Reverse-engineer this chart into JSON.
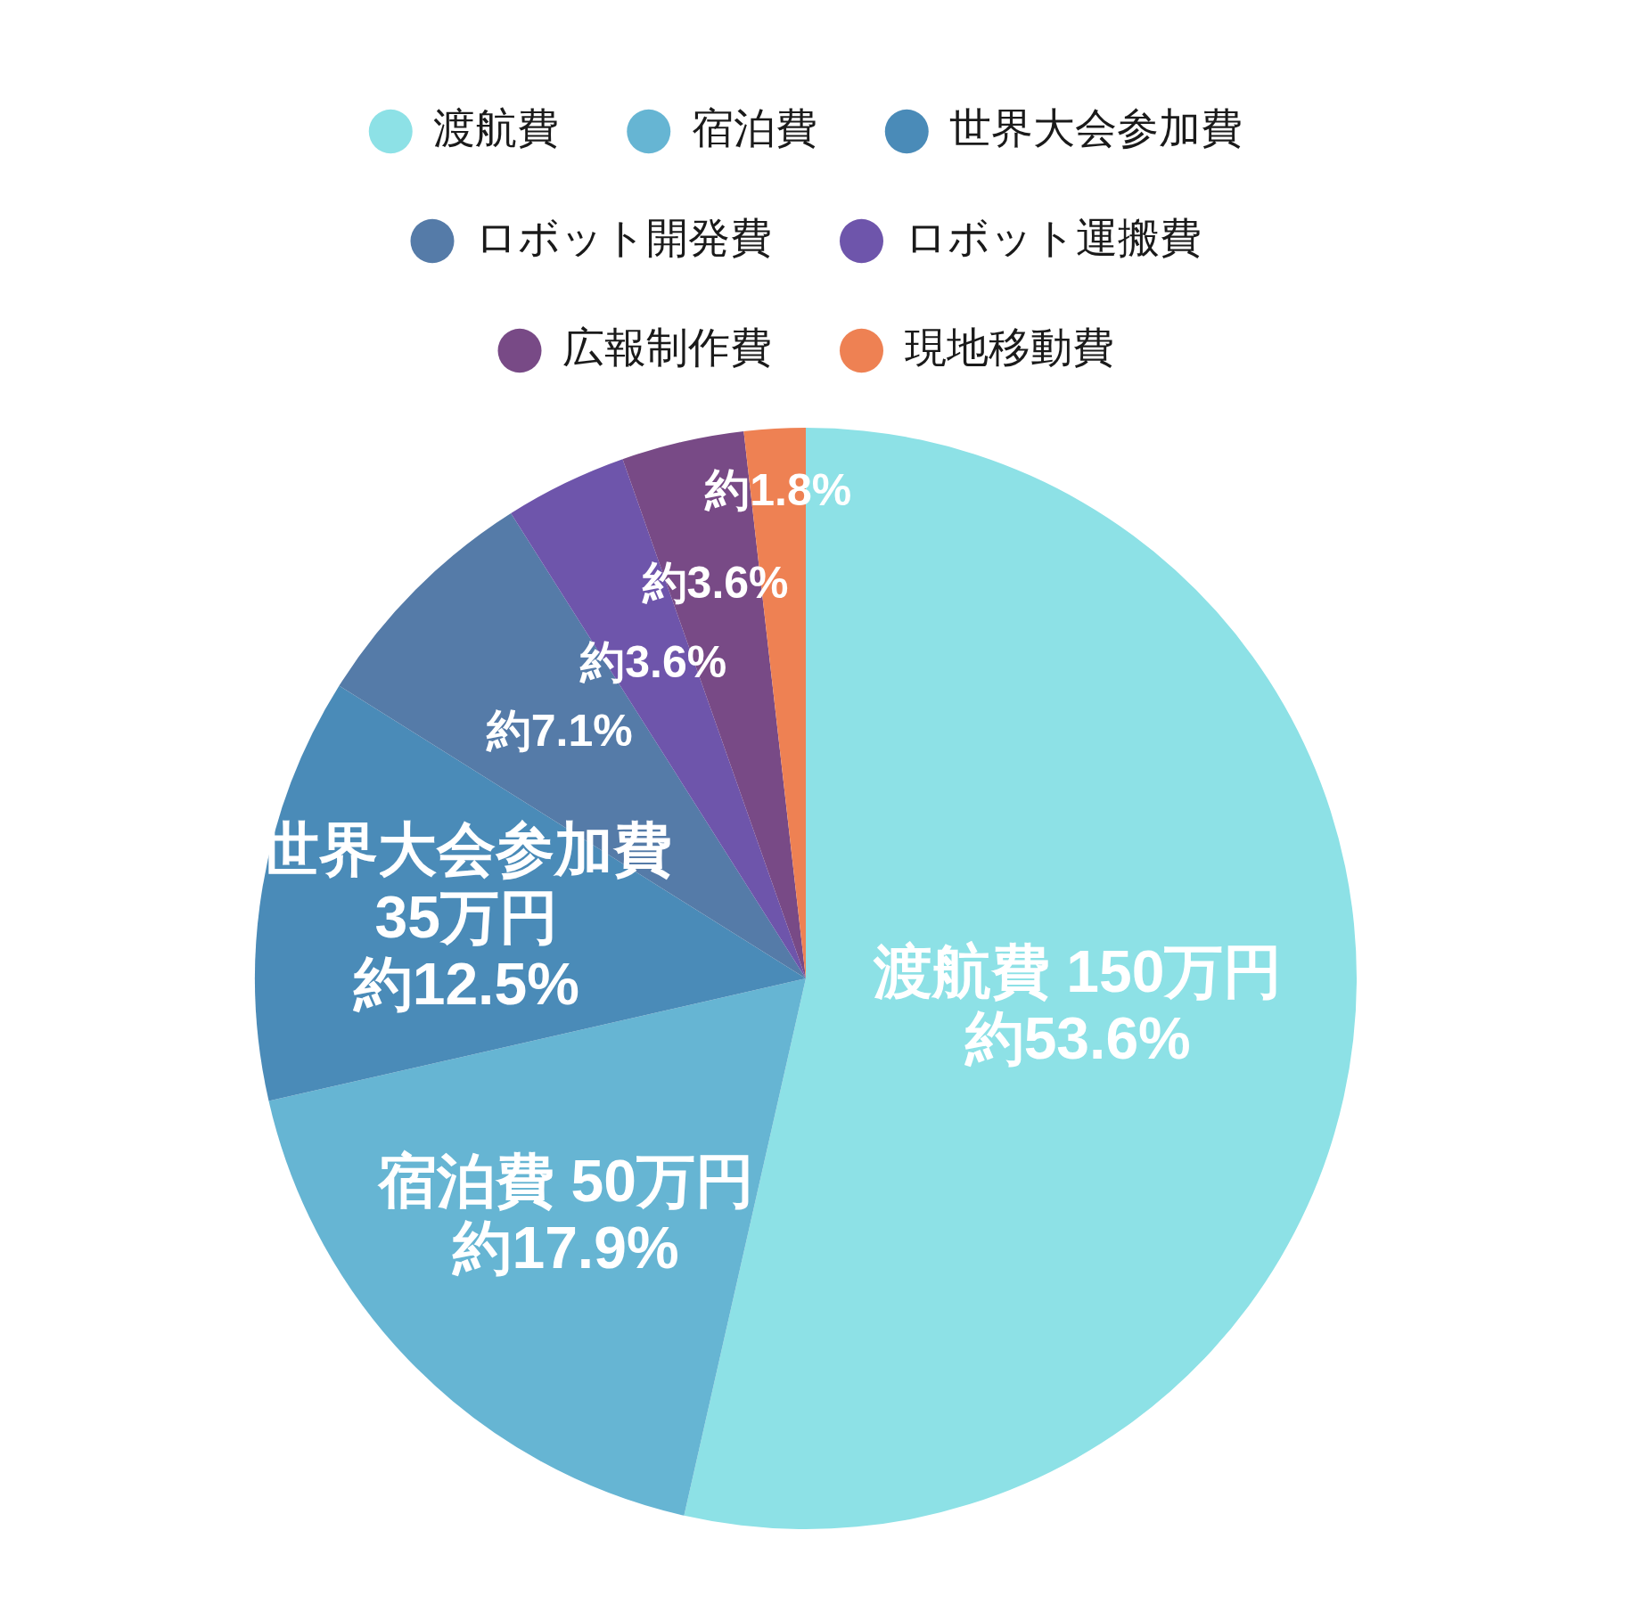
{
  "chart_data": {
    "type": "pie",
    "categories": [
      "渡航費",
      "宿泊費",
      "世界大会参加費",
      "ロボット開発費",
      "ロボット運搬費",
      "広報制作費",
      "現地移動費"
    ],
    "values": [
      53.6,
      17.9,
      12.5,
      7.1,
      3.6,
      3.6,
      1.8
    ],
    "colors": [
      "#8de1e6",
      "#66b5d3",
      "#4a8bb8",
      "#557ba8",
      "#6e55ab",
      "#784a86",
      "#ee8153"
    ],
    "value_labels": [
      "渡航費 150万円約53.6%",
      "宿泊費 50万円約17.9%",
      "世界大会参加費35万円約12.5%",
      "約7.1%",
      "約3.6%",
      "約3.6%",
      "約1.8%"
    ],
    "legend": "top"
  }
}
